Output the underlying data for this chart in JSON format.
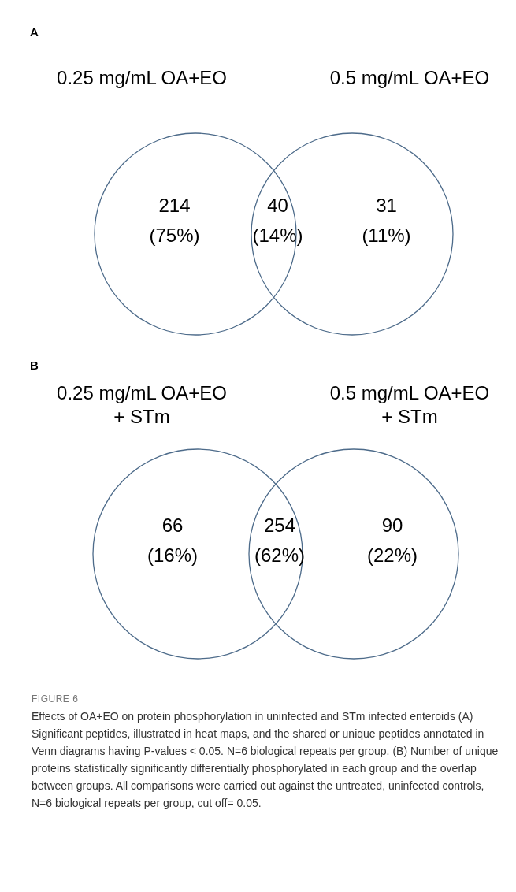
{
  "chart_data": [
    {
      "type": "other",
      "title": "A",
      "color": "#4d6b8a",
      "categories": [
        "0.25 mg/mL OA+EO",
        null,
        "0.5 mg/mL OA+EO"
      ],
      "values": [
        214,
        40,
        31
      ],
      "data_labels": true,
      "annotations": [
        "(75%)",
        "(14%)",
        "(11%)"
      ]
    },
    {
      "type": "other",
      "title": "B",
      "color": "#4d6b8a",
      "categories": [
        "0.25 mg/mL OA+EO\n+ STm",
        null,
        "0.5 mg/mL OA+EO\n+ STm"
      ],
      "values": [
        66,
        254,
        90
      ],
      "data_labels": true,
      "annotations": [
        "(16%)",
        "(62%)",
        "(22%)",
        "FIGURE 6",
        "Effects of OA+EO on protein phosphorylation in uninfected and STm infected enteroids (A) Significant peptides, illustrated in heat maps, and the shared or unique peptides annotated in Venn diagrams having P-values < 0.05. N=6 biological repeats per group. (B) Number of unique proteins statistically significantly differentially phosphorylated in each group and the overlap between groups. All comparisons were carried out against the untreated, uninfected controls, N=6 biological repeats per group, cut off= 0.05."
      ]
    }
  ]
}
